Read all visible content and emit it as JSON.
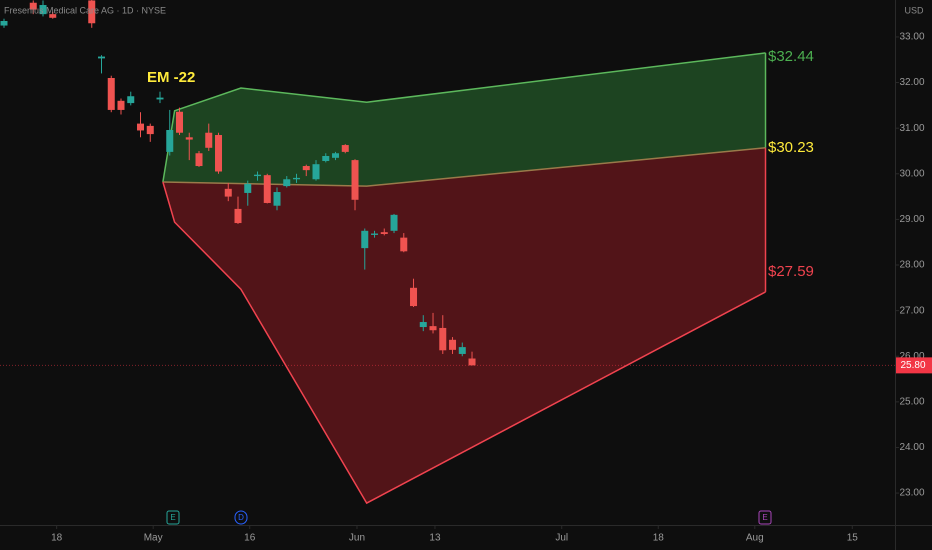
{
  "chart_data": {
    "type": "candlestick",
    "title": "Fresenius Medical Care AG · 1D · NYSE",
    "currency": "USD",
    "up_color": "#26a69a",
    "down_color": "#ef5350",
    "candles": {
      "x": [
        0,
        3,
        4,
        5,
        9,
        10,
        11,
        12,
        13,
        14,
        15,
        16,
        17,
        18,
        19,
        20,
        21,
        22,
        23,
        24,
        25,
        26,
        27,
        28,
        29,
        30,
        31,
        32,
        33,
        34,
        35,
        36,
        37,
        38,
        39,
        40,
        41,
        42,
        43,
        44,
        45,
        46,
        47,
        48
      ],
      "open": [
        33.25,
        33.75,
        33.5,
        33.5,
        33.8,
        32.53,
        32.1,
        31.6,
        31.55,
        31.1,
        31.05,
        31.63,
        30.48,
        31.36,
        30.8,
        30.45,
        30.9,
        30.85,
        29.67,
        29.23,
        29.58,
        29.95,
        29.97,
        29.3,
        29.73,
        29.88,
        30.17,
        29.88,
        30.28,
        30.35,
        30.63,
        30.3,
        28.37,
        28.66,
        28.72,
        28.75,
        28.6,
        27.5,
        26.64,
        26.66,
        26.62,
        26.36,
        26.05,
        25.95
      ],
      "high": [
        33.4,
        33.8,
        33.8,
        33.55,
        33.85,
        32.6,
        32.15,
        31.65,
        31.8,
        31.35,
        31.1,
        31.8,
        31.4,
        31.45,
        30.9,
        30.5,
        31.1,
        30.9,
        29.8,
        29.5,
        29.85,
        30.05,
        30.0,
        29.7,
        29.95,
        30.0,
        30.2,
        30.3,
        30.45,
        30.48,
        30.65,
        30.32,
        28.8,
        28.75,
        28.8,
        29.12,
        28.7,
        27.7,
        26.9,
        26.95,
        26.9,
        26.42,
        26.3,
        26.1
      ],
      "low": [
        33.2,
        33.5,
        33.45,
        33.4,
        33.2,
        32.2,
        31.35,
        31.3,
        31.5,
        30.8,
        30.7,
        31.55,
        30.4,
        30.85,
        30.3,
        30.15,
        30.5,
        30.0,
        29.4,
        28.9,
        29.3,
        29.85,
        29.35,
        29.2,
        29.7,
        29.8,
        29.95,
        29.85,
        30.25,
        30.3,
        30.45,
        29.2,
        27.9,
        28.6,
        28.65,
        28.7,
        28.28,
        27.08,
        26.55,
        26.5,
        26.05,
        26.05,
        26.0,
        25.8
      ],
      "close": [
        33.35,
        33.6,
        33.7,
        33.42,
        33.3,
        32.57,
        31.4,
        31.4,
        31.7,
        30.95,
        30.87,
        31.67,
        30.96,
        30.9,
        30.75,
        30.17,
        30.57,
        30.05,
        29.5,
        28.92,
        29.78,
        29.98,
        29.36,
        29.6,
        29.88,
        29.91,
        30.08,
        30.21,
        30.39,
        30.45,
        30.48,
        29.43,
        28.75,
        28.69,
        28.68,
        29.1,
        28.3,
        27.1,
        26.75,
        26.57,
        26.13,
        26.14,
        26.2,
        25.8
      ]
    },
    "upper_band": {
      "color": "#5cb85c",
      "fill": "#1f4a24",
      "x": [
        16.3,
        17.5,
        24.3,
        37.2,
        78.1
      ],
      "y": [
        29.82,
        31.38,
        31.88,
        31.57,
        32.65
      ]
    },
    "middle_band": {
      "color": "#9a7a4a",
      "x": [
        16.3,
        37.2,
        78.1
      ],
      "y": [
        29.82,
        29.73,
        30.57
      ]
    },
    "lower_band": {
      "color": "#f0434f",
      "fill": "#5a1519",
      "x": [
        16.3,
        17.5,
        24.3,
        37.2,
        78.1
      ],
      "y": [
        29.82,
        28.94,
        27.47,
        22.78,
        27.41
      ]
    },
    "annotations": [
      {
        "text": "EM -22",
        "color": "#ffeb3b"
      },
      {
        "text": "$32.44",
        "color": "#4caf50"
      },
      {
        "text": "$30.23",
        "color": "#ffeb3b"
      },
      {
        "text": "$27.59",
        "color": "#f0434f"
      }
    ],
    "events": [
      {
        "label": "E",
        "color": "#26a69a"
      },
      {
        "label": "D",
        "color": "#2962ff"
      },
      {
        "label": "E",
        "color": "#ab47bc"
      }
    ],
    "last_price": {
      "value": 25.8,
      "label": "25.80"
    },
    "last_price_color": "#f23645",
    "xlim": [
      -0.41,
      91.38
    ],
    "xticks": [
      {
        "value": 5.4,
        "label": "18"
      },
      {
        "value": 15.3,
        "label": "May"
      },
      {
        "value": 25.2,
        "label": "16"
      },
      {
        "value": 36.2,
        "label": "Jun"
      },
      {
        "value": 44.2,
        "label": "13"
      },
      {
        "value": 57.2,
        "label": "Jul"
      },
      {
        "value": 67.1,
        "label": "18"
      },
      {
        "value": 77.0,
        "label": "Aug"
      },
      {
        "value": 87.0,
        "label": "15"
      }
    ],
    "ylim": [
      22.3,
      33.81
    ],
    "yticks": [
      {
        "value": 23,
        "label": "23.00"
      },
      {
        "value": 24,
        "label": "24.00"
      },
      {
        "value": 25,
        "label": "25.00"
      },
      {
        "value": 26,
        "label": "26.00"
      },
      {
        "value": 27,
        "label": "27.00"
      },
      {
        "value": 28,
        "label": "28.00"
      },
      {
        "value": 29,
        "label": "29.00"
      },
      {
        "value": 30,
        "label": "30.00"
      },
      {
        "value": 31,
        "label": "31.00"
      },
      {
        "value": 32,
        "label": "32.00"
      },
      {
        "value": 33,
        "label": "33.00"
      }
    ]
  }
}
